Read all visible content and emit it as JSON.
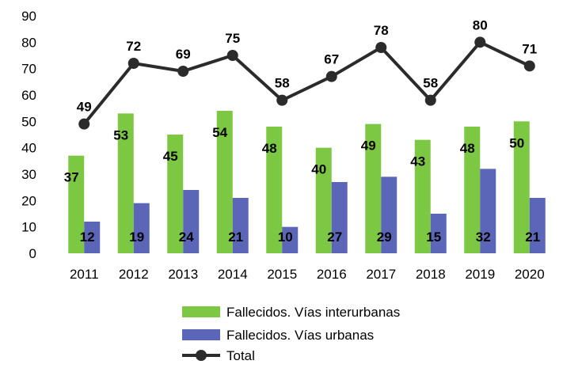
{
  "chart_data": {
    "type": "bar+line",
    "categories": [
      "2011",
      "2012",
      "2013",
      "2014",
      "2015",
      "2016",
      "2017",
      "2018",
      "2019",
      "2020"
    ],
    "series": [
      {
        "name": "Fallecidos. Vías interurbanas",
        "kind": "bar",
        "color": "#7DC843",
        "values": [
          37,
          53,
          45,
          54,
          48,
          40,
          49,
          43,
          48,
          50
        ]
      },
      {
        "name": "Fallecidos. Vías urbanas",
        "kind": "bar",
        "color": "#5B66B8",
        "values": [
          12,
          19,
          24,
          21,
          10,
          27,
          29,
          15,
          32,
          21
        ]
      },
      {
        "name": "Total",
        "kind": "line",
        "color": "#2B2B2B",
        "values": [
          49,
          72,
          69,
          75,
          58,
          67,
          78,
          58,
          80,
          71
        ]
      }
    ],
    "y_ticks": [
      "0",
      "10",
      "20",
      "30",
      "40",
      "50",
      "60",
      "70",
      "80",
      "90"
    ],
    "ylim": [
      0,
      90
    ],
    "legend_position": "bottom"
  }
}
